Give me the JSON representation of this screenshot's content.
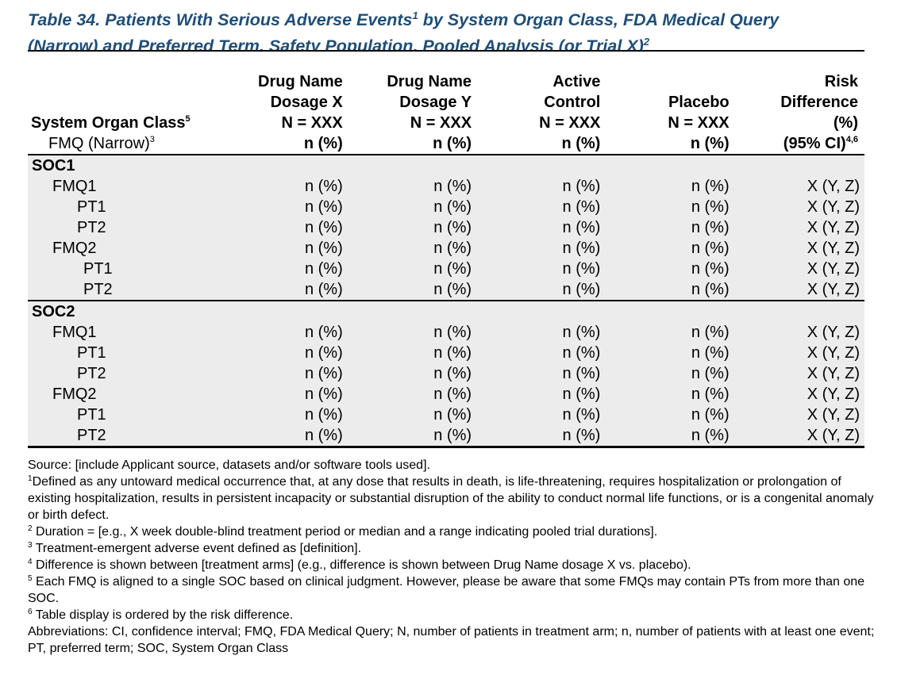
{
  "title": {
    "line1": "Table 34. Patients With Serious Adverse Events",
    "line1_sup": "1",
    "line1_rest": " by System Organ Class, FDA Medical Query",
    "line2": "(Narrow) and Preferred Term, Safety Population, Pooled Analysis (or Trial X)",
    "line2_sup": "2"
  },
  "header": {
    "soc_label": "System Organ Class",
    "soc_sup": "5",
    "fmq_label": "FMQ (Narrow)",
    "fmq_sup": "3",
    "columns": [
      {
        "line1": "Drug Name",
        "line2": "Dosage X",
        "line3": "N = XXX",
        "line4": "n (%)"
      },
      {
        "line1": "Drug Name",
        "line2": "Dosage Y",
        "line3": "N = XXX",
        "line4": "n (%)"
      },
      {
        "line1": "Active",
        "line2": "Control",
        "line3": "N = XXX",
        "line4": "n (%)"
      },
      {
        "line1": "",
        "line2": "",
        "line3": "Placebo",
        "line3b": "N = XXX",
        "line4": "n (%)"
      },
      {
        "line1": "Risk",
        "line2": "Difference",
        "line3": "(%)",
        "line4": "(95% CI)",
        "line4_sup": "4,6"
      }
    ]
  },
  "groups": [
    {
      "soc": "SOC1",
      "rows": [
        {
          "label": "FMQ1",
          "values": [
            "n (%)",
            "n (%)",
            "n (%)",
            "n (%)",
            "X (Y, Z)"
          ]
        },
        {
          "label": "PT1",
          "values": [
            "n (%)",
            "n (%)",
            "n (%)",
            "n (%)",
            "X (Y, Z)"
          ]
        },
        {
          "label": "PT2",
          "values": [
            "n (%)",
            "n (%)",
            "n (%)",
            "n (%)",
            "X (Y, Z)"
          ]
        },
        {
          "label": "FMQ2",
          "values": [
            "n (%)",
            "n (%)",
            "n (%)",
            "n (%)",
            "X (Y, Z)"
          ]
        },
        {
          "label": "PT1",
          "values": [
            "n (%)",
            "n (%)",
            "n (%)",
            "n (%)",
            "X (Y, Z)"
          ]
        },
        {
          "label": "PT2",
          "values": [
            "n (%)",
            "n (%)",
            "n (%)",
            "n (%)",
            "X (Y, Z)"
          ]
        }
      ]
    },
    {
      "soc": "SOC2",
      "rows": [
        {
          "label": "FMQ1",
          "values": [
            "n (%)",
            "n (%)",
            "n (%)",
            "n (%)",
            "X (Y, Z)"
          ]
        },
        {
          "label": "PT1",
          "values": [
            "n (%)",
            "n (%)",
            "n (%)",
            "n (%)",
            "X (Y, Z)"
          ]
        },
        {
          "label": "PT2",
          "values": [
            "n (%)",
            "n (%)",
            "n (%)",
            "n (%)",
            "X (Y, Z)"
          ]
        },
        {
          "label": "FMQ2",
          "values": [
            "n (%)",
            "n (%)",
            "n (%)",
            "n (%)",
            "X (Y, Z)"
          ]
        },
        {
          "label": "PT1",
          "values": [
            "n (%)",
            "n (%)",
            "n (%)",
            "n (%)",
            "X (Y, Z)"
          ]
        },
        {
          "label": "PT2",
          "values": [
            "n (%)",
            "n (%)",
            "n (%)",
            "n (%)",
            "X (Y, Z)"
          ]
        }
      ]
    }
  ],
  "footnotes": {
    "source": "Source: [include Applicant source, datasets and/or software tools used].",
    "fn1_num": "1",
    "fn1": "Defined as any untoward medical occurrence that, at any dose that results in death, is life-threatening, requires hospitalization or prolongation of existing hospitalization, results in persistent incapacity or substantial disruption of the ability to conduct normal life functions, or is a congenital anomaly or birth defect.",
    "fn2_num": "2",
    "fn2": " Duration = [e.g., X week double-blind treatment period or median and a range indicating pooled trial durations].",
    "fn3_num": "3",
    "fn3": " Treatment-emergent adverse event defined as [definition].",
    "fn4_num": "4",
    "fn4": " Difference is shown between [treatment arms] (e.g., difference is shown between Drug Name dosage X vs. placebo).",
    "fn5_num": "5",
    "fn5": " Each FMQ is aligned to a single SOC based on clinical judgment. However, please be aware that some FMQs may contain PTs from more than one SOC.",
    "fn6_num": "6",
    "fn6": " Table display is ordered by the risk difference.",
    "abbreviations": "Abbreviations: CI, confidence interval; FMQ, FDA Medical Query; N, number of patients in treatment arm; n, number of patients with at least one event; PT, preferred term; SOC, System Organ Class"
  }
}
